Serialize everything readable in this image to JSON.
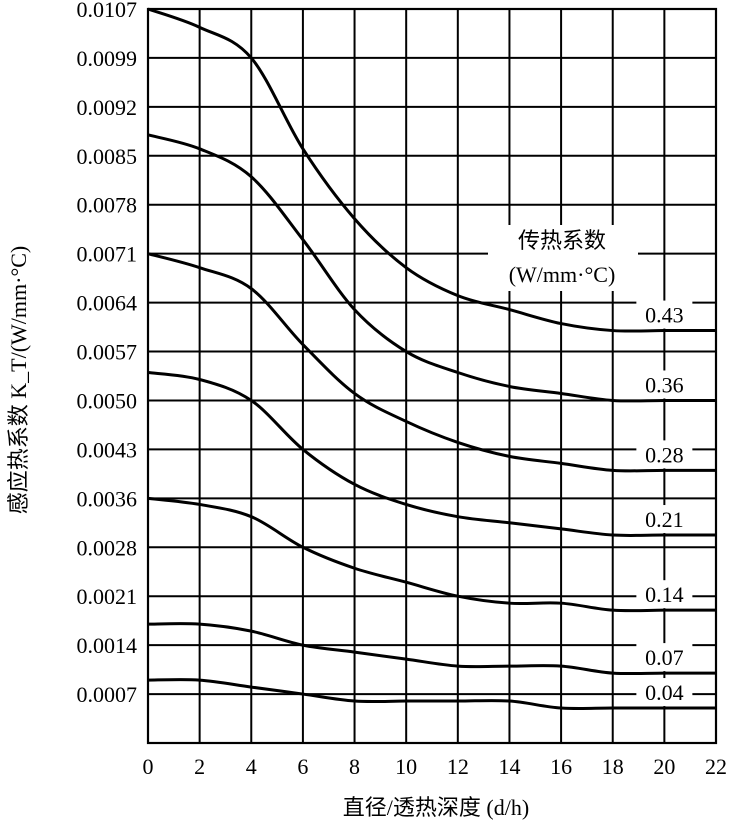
{
  "chart_data": {
    "type": "line",
    "title": "",
    "xlabel": "直径/透热深度 (d/h)",
    "ylabel": "感应热系数 K_T/(W/mm·°C)",
    "xlim": [
      0,
      22
    ],
    "xticks": [
      0,
      2,
      4,
      6,
      8,
      10,
      12,
      14,
      16,
      18,
      20,
      22
    ],
    "yticks": [
      "0.0007",
      "0.0014",
      "0.0021",
      "0.0028",
      "0.0036",
      "0.0043",
      "0.0050",
      "0.0057",
      "0.0064",
      "0.0071",
      "0.0078",
      "0.0085",
      "0.0092",
      "0.0099",
      "0.0107"
    ],
    "grid": true,
    "legend_title": [
      "传热系数",
      "(W/mm·°C)"
    ],
    "x": [
      0,
      2,
      4,
      6,
      8,
      10,
      12,
      14,
      16,
      18,
      20,
      22
    ],
    "series": [
      {
        "name": "0.43",
        "values": [
          0.0107,
          0.0104,
          0.0099,
          0.0086,
          0.0076,
          0.0069,
          0.0065,
          0.0063,
          0.0061,
          0.006,
          0.006,
          0.006
        ]
      },
      {
        "name": "0.36",
        "values": [
          0.0088,
          0.0086,
          0.0082,
          0.0073,
          0.0063,
          0.0057,
          0.0054,
          0.0052,
          0.0051,
          0.005,
          0.005,
          0.005
        ]
      },
      {
        "name": "0.28",
        "values": [
          0.0071,
          0.0069,
          0.0066,
          0.0058,
          0.0051,
          0.0047,
          0.0044,
          0.0042,
          0.0041,
          0.004,
          0.004,
          0.004
        ]
      },
      {
        "name": "0.21",
        "values": [
          0.0054,
          0.0053,
          0.005,
          0.0043,
          0.0038,
          0.0035,
          0.0033,
          0.0032,
          0.0031,
          0.003,
          0.003,
          0.003
        ]
      },
      {
        "name": "0.14",
        "values": [
          0.0036,
          0.0035,
          0.0033,
          0.0028,
          0.0025,
          0.0023,
          0.0021,
          0.002,
          0.002,
          0.0019,
          0.0019,
          0.0019
        ]
      },
      {
        "name": "0.07",
        "values": [
          0.0017,
          0.0017,
          0.0016,
          0.0014,
          0.0013,
          0.0012,
          0.0011,
          0.0011,
          0.0011,
          0.001,
          0.001,
          0.001
        ]
      },
      {
        "name": "0.04",
        "values": [
          0.0009,
          0.0009,
          0.0008,
          0.0007,
          0.0006,
          0.0006,
          0.0006,
          0.0006,
          0.0005,
          0.0005,
          0.0005,
          0.0005
        ]
      }
    ]
  }
}
